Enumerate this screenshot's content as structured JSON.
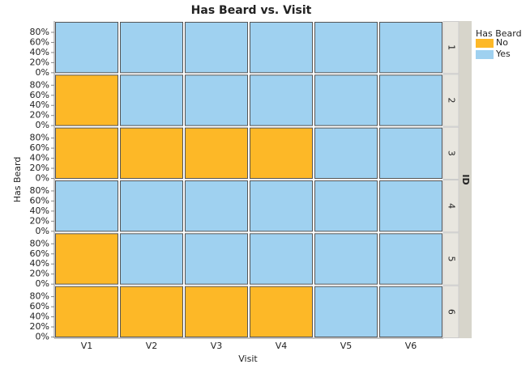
{
  "chart_data": {
    "type": "stacked-bar-facets",
    "title": "Has Beard vs. Visit",
    "x_label": "Visit",
    "y_label": "Has Beard",
    "facet_label": "ID",
    "legend_title": "Has Beard",
    "categories": [
      "V1",
      "V2",
      "V3",
      "V4",
      "V5",
      "V6"
    ],
    "series": [
      {
        "name": "No",
        "color": "#fdb827"
      },
      {
        "name": "Yes",
        "color": "#9fd1f0"
      }
    ],
    "panels": [
      {
        "label": "1",
        "values": [
          [
            0,
            0,
            0,
            0,
            0,
            0
          ],
          [
            100,
            100,
            100,
            100,
            100,
            100
          ]
        ]
      },
      {
        "label": "2",
        "values": [
          [
            100,
            0,
            0,
            0,
            0,
            0
          ],
          [
            0,
            100,
            100,
            100,
            100,
            100
          ]
        ]
      },
      {
        "label": "3",
        "values": [
          [
            100,
            100,
            100,
            100,
            0,
            0
          ],
          [
            0,
            0,
            0,
            0,
            100,
            100
          ]
        ]
      },
      {
        "label": "4",
        "values": [
          [
            0,
            0,
            0,
            0,
            0,
            0
          ],
          [
            100,
            100,
            100,
            100,
            100,
            100
          ]
        ]
      },
      {
        "label": "5",
        "values": [
          [
            100,
            0,
            0,
            0,
            0,
            0
          ],
          [
            0,
            100,
            100,
            100,
            100,
            100
          ]
        ]
      },
      {
        "label": "6",
        "values": [
          [
            100,
            100,
            100,
            100,
            0,
            0
          ],
          [
            0,
            0,
            0,
            0,
            100,
            100
          ]
        ]
      }
    ],
    "ylim": [
      0,
      100
    ],
    "yticks": [
      {
        "value": 0,
        "label": "0%"
      },
      {
        "value": 20,
        "label": "20%"
      },
      {
        "value": 40,
        "label": "40%"
      },
      {
        "value": 60,
        "label": "60%"
      },
      {
        "value": 80,
        "label": "80%"
      }
    ]
  }
}
